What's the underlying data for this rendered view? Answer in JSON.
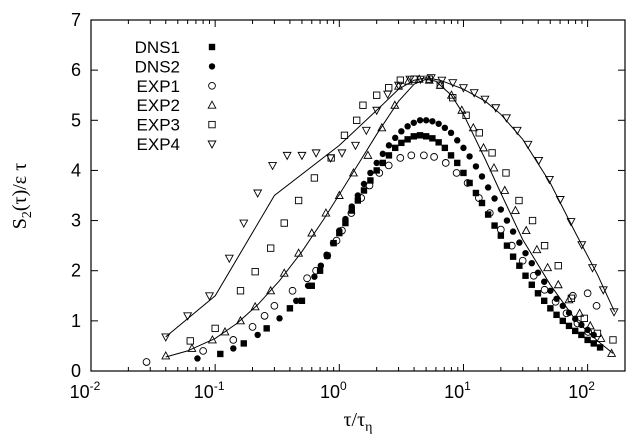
{
  "chart_data": {
    "type": "scatter",
    "xlabel": "τ/τ_η",
    "ylabel": "S_2(τ)/ε τ",
    "xscale": "log",
    "xlim": [
      0.01,
      200
    ],
    "ylim": [
      0,
      7
    ],
    "x_ticks": [
      {
        "base": "10",
        "exp": "-2"
      },
      {
        "base": "10",
        "exp": "-1"
      },
      {
        "base": "10",
        "exp": "0"
      },
      {
        "base": "10",
        "exp": "1"
      },
      {
        "base": "10",
        "exp": "2"
      }
    ],
    "y_ticks": [
      "0",
      "1",
      "2",
      "3",
      "4",
      "5",
      "6",
      "7"
    ],
    "legend_position": "top-left",
    "grid": false,
    "series": [
      {
        "name": "DNS1",
        "marker": "filled-square",
        "points": [
          [
            0.11,
            0.34
          ],
          [
            0.17,
            0.55
          ],
          [
            0.26,
            0.85
          ],
          [
            0.4,
            1.25
          ],
          [
            0.5,
            1.4
          ],
          [
            0.6,
            1.7
          ],
          [
            0.7,
            2.0
          ],
          [
            0.8,
            2.3
          ],
          [
            0.9,
            2.55
          ],
          [
            1.0,
            2.75
          ],
          [
            1.12,
            2.95
          ],
          [
            1.26,
            3.2
          ],
          [
            1.41,
            3.4
          ],
          [
            1.58,
            3.6
          ],
          [
            1.78,
            3.8
          ],
          [
            2.0,
            4.0
          ],
          [
            2.24,
            4.15
          ],
          [
            2.51,
            4.3
          ],
          [
            2.82,
            4.45
          ],
          [
            3.16,
            4.55
          ],
          [
            3.55,
            4.62
          ],
          [
            3.98,
            4.68
          ],
          [
            4.47,
            4.7
          ],
          [
            5.01,
            4.68
          ],
          [
            5.62,
            4.64
          ],
          [
            6.31,
            4.56
          ],
          [
            7.08,
            4.45
          ],
          [
            7.94,
            4.3
          ],
          [
            8.91,
            4.15
          ],
          [
            10.0,
            3.95
          ],
          [
            11.2,
            3.75
          ],
          [
            12.6,
            3.55
          ],
          [
            14.1,
            3.35
          ],
          [
            15.8,
            3.12
          ],
          [
            17.8,
            2.9
          ],
          [
            20.0,
            2.7
          ],
          [
            22.4,
            2.5
          ],
          [
            25.1,
            2.28
          ],
          [
            28.2,
            2.1
          ],
          [
            31.6,
            1.9
          ],
          [
            35.5,
            1.72
          ],
          [
            39.8,
            1.55
          ],
          [
            44.7,
            1.4
          ],
          [
            50.1,
            1.25
          ],
          [
            56.2,
            1.12
          ],
          [
            63.1,
            1.0
          ],
          [
            70.8,
            0.9
          ],
          [
            79.4,
            0.8
          ],
          [
            89.1,
            0.72
          ],
          [
            100.0,
            0.62
          ],
          [
            112.0,
            0.55
          ],
          [
            126.0,
            0.47
          ]
        ]
      },
      {
        "name": "DNS2",
        "marker": "filled-circle",
        "points": [
          [
            0.072,
            0.25
          ],
          [
            0.14,
            0.45
          ],
          [
            0.22,
            0.72
          ],
          [
            0.33,
            1.05
          ],
          [
            0.45,
            1.4
          ],
          [
            0.56,
            1.7
          ],
          [
            0.63,
            1.88
          ],
          [
            0.71,
            2.1
          ],
          [
            0.79,
            2.32
          ],
          [
            0.89,
            2.55
          ],
          [
            1.0,
            2.8
          ],
          [
            1.12,
            3.03
          ],
          [
            1.26,
            3.28
          ],
          [
            1.41,
            3.5
          ],
          [
            1.58,
            3.73
          ],
          [
            1.78,
            3.95
          ],
          [
            2.0,
            4.15
          ],
          [
            2.24,
            4.33
          ],
          [
            2.51,
            4.5
          ],
          [
            2.82,
            4.65
          ],
          [
            3.16,
            4.78
          ],
          [
            3.55,
            4.88
          ],
          [
            3.98,
            4.95
          ],
          [
            4.47,
            5.0
          ],
          [
            5.01,
            5.0
          ],
          [
            5.62,
            4.98
          ],
          [
            6.31,
            4.93
          ],
          [
            7.08,
            4.85
          ],
          [
            7.94,
            4.75
          ],
          [
            8.91,
            4.6
          ],
          [
            10.0,
            4.45
          ],
          [
            11.2,
            4.28
          ],
          [
            12.6,
            4.08
          ],
          [
            14.1,
            3.88
          ],
          [
            15.8,
            3.66
          ],
          [
            17.8,
            3.44
          ],
          [
            20.0,
            3.22
          ],
          [
            22.4,
            3.0
          ],
          [
            25.1,
            2.78
          ],
          [
            28.2,
            2.56
          ],
          [
            31.6,
            2.35
          ],
          [
            35.5,
            2.15
          ],
          [
            39.8,
            1.96
          ],
          [
            44.7,
            1.78
          ],
          [
            50.1,
            1.6
          ],
          [
            56.2,
            1.44
          ],
          [
            63.1,
            1.3
          ],
          [
            70.8,
            1.16
          ],
          [
            79.4,
            1.04
          ],
          [
            89.1,
            0.92
          ],
          [
            100.0,
            0.82
          ],
          [
            112.0,
            0.72
          ]
        ]
      },
      {
        "name": "EXP1",
        "marker": "open-circle",
        "points": [
          [
            0.028,
            0.18
          ],
          [
            0.08,
            0.4
          ],
          [
            0.14,
            0.62
          ],
          [
            0.2,
            0.88
          ],
          [
            0.25,
            1.1
          ],
          [
            0.3,
            1.3
          ],
          [
            0.42,
            1.6
          ],
          [
            0.55,
            1.85
          ],
          [
            0.65,
            2.0
          ],
          [
            0.8,
            2.3
          ],
          [
            0.95,
            2.6
          ],
          [
            1.05,
            2.8
          ],
          [
            1.25,
            3.15
          ],
          [
            1.5,
            3.45
          ],
          [
            1.75,
            3.7
          ],
          [
            2.1,
            3.95
          ],
          [
            2.5,
            4.1
          ],
          [
            3.1,
            4.25
          ],
          [
            3.8,
            4.3
          ],
          [
            4.8,
            4.3
          ],
          [
            5.8,
            4.27
          ],
          [
            7.2,
            4.15
          ],
          [
            8.8,
            3.95
          ],
          [
            10.8,
            3.75
          ],
          [
            13.3,
            3.45
          ],
          [
            16.3,
            3.15
          ],
          [
            20.0,
            2.82
          ],
          [
            24.5,
            2.5
          ],
          [
            30.0,
            2.2
          ],
          [
            36.8,
            1.9
          ],
          [
            45.0,
            1.62
          ],
          [
            55.2,
            1.38
          ],
          [
            67.6,
            1.15
          ],
          [
            82.8,
            0.95
          ],
          [
            101.0,
            0.78
          ],
          [
            76.0,
            1.5
          ],
          [
            100.0,
            1.55
          ],
          [
            118.0,
            1.3
          ]
        ]
      },
      {
        "name": "EXP2",
        "marker": "open-triangle",
        "points": [
          [
            0.04,
            0.3
          ],
          [
            0.065,
            0.45
          ],
          [
            0.095,
            0.62
          ],
          [
            0.12,
            0.78
          ],
          [
            0.16,
            1.0
          ],
          [
            0.21,
            1.28
          ],
          [
            0.28,
            1.6
          ],
          [
            0.36,
            1.95
          ],
          [
            0.47,
            2.35
          ],
          [
            0.6,
            2.75
          ],
          [
            0.78,
            3.15
          ],
          [
            1.0,
            3.5
          ],
          [
            1.3,
            3.95
          ],
          [
            1.7,
            4.3
          ],
          [
            2.2,
            4.85
          ],
          [
            2.8,
            5.3
          ],
          [
            3.0,
            5.68
          ],
          [
            3.6,
            5.78
          ],
          [
            4.4,
            5.82
          ],
          [
            5.3,
            5.8
          ],
          [
            6.5,
            5.7
          ],
          [
            8.0,
            5.5
          ],
          [
            9.7,
            5.2
          ],
          [
            12.0,
            4.85
          ],
          [
            14.5,
            4.45
          ],
          [
            17.6,
            4.05
          ],
          [
            21.5,
            3.6
          ],
          [
            26.2,
            3.2
          ],
          [
            32.0,
            2.8
          ],
          [
            39.0,
            2.42
          ],
          [
            47.6,
            2.06
          ],
          [
            58.0,
            1.72
          ],
          [
            70.7,
            1.42
          ],
          [
            86.2,
            1.15
          ],
          [
            105.0,
            0.9
          ],
          [
            128.0,
            0.65
          ],
          [
            156.0,
            0.35
          ]
        ]
      },
      {
        "name": "EXP3",
        "marker": "open-square",
        "points": [
          [
            0.063,
            0.6
          ],
          [
            0.1,
            0.85
          ],
          [
            0.16,
            1.6
          ],
          [
            0.21,
            1.98
          ],
          [
            0.28,
            2.45
          ],
          [
            0.36,
            2.95
          ],
          [
            0.47,
            3.4
          ],
          [
            0.63,
            3.85
          ],
          [
            0.86,
            4.25
          ],
          [
            1.1,
            4.7
          ],
          [
            1.38,
            5.0
          ],
          [
            1.55,
            5.3
          ],
          [
            2.0,
            5.5
          ],
          [
            2.5,
            5.65
          ],
          [
            3.1,
            5.8
          ],
          [
            4.0,
            5.82
          ],
          [
            5.3,
            5.82
          ],
          [
            6.5,
            5.7
          ],
          [
            8.2,
            5.45
          ],
          [
            10.5,
            5.1
          ],
          [
            13.4,
            4.75
          ],
          [
            17.0,
            4.35
          ],
          [
            22.0,
            3.95
          ],
          [
            28.0,
            3.4
          ],
          [
            36.0,
            3.0
          ],
          [
            45.0,
            2.5
          ],
          [
            58.0,
            2.1
          ],
          [
            74.0,
            1.45
          ],
          [
            94.0,
            1.05
          ],
          [
            120.0,
            0.75
          ],
          [
            160.0,
            0.62
          ]
        ]
      },
      {
        "name": "EXP4",
        "marker": "open-triangle-down",
        "points": [
          [
            0.04,
            0.68
          ],
          [
            0.06,
            1.1
          ],
          [
            0.09,
            1.5
          ],
          [
            0.13,
            2.25
          ],
          [
            0.17,
            2.95
          ],
          [
            0.22,
            3.55
          ],
          [
            0.29,
            4.1
          ],
          [
            0.38,
            4.3
          ],
          [
            0.5,
            4.3
          ],
          [
            0.65,
            4.35
          ],
          [
            0.85,
            4.25
          ],
          [
            1.05,
            4.35
          ],
          [
            1.35,
            4.5
          ],
          [
            1.65,
            4.8
          ],
          [
            2.0,
            5.2
          ],
          [
            2.45,
            5.52
          ],
          [
            3.0,
            5.7
          ],
          [
            3.7,
            5.82
          ],
          [
            4.5,
            5.82
          ],
          [
            5.5,
            5.85
          ],
          [
            6.7,
            5.8
          ],
          [
            8.2,
            5.75
          ],
          [
            10.0,
            5.65
          ],
          [
            12.2,
            5.55
          ],
          [
            14.9,
            5.42
          ],
          [
            18.2,
            5.25
          ],
          [
            22.2,
            5.05
          ],
          [
            27.1,
            4.8
          ],
          [
            33.1,
            4.52
          ],
          [
            40.4,
            4.2
          ],
          [
            49.3,
            3.82
          ],
          [
            60.2,
            3.42
          ],
          [
            73.5,
            2.98
          ],
          [
            89.7,
            2.52
          ],
          [
            109.5,
            2.06
          ],
          [
            133.7,
            1.62
          ],
          [
            163.2,
            1.18
          ]
        ]
      }
    ],
    "fit_curves": [
      {
        "points": [
          [
            0.04,
            0.28
          ],
          [
            0.06,
            0.4
          ],
          [
            0.1,
            0.65
          ],
          [
            0.15,
            0.95
          ],
          [
            0.22,
            1.32
          ],
          [
            0.33,
            1.8
          ],
          [
            0.5,
            2.38
          ],
          [
            0.75,
            3.03
          ],
          [
            1.0,
            3.52
          ],
          [
            1.5,
            4.22
          ],
          [
            2.0,
            4.72
          ],
          [
            3.0,
            5.38
          ],
          [
            4.0,
            5.72
          ],
          [
            5.0,
            5.82
          ],
          [
            6.0,
            5.78
          ],
          [
            8.0,
            5.5
          ],
          [
            10.0,
            5.12
          ],
          [
            15.0,
            4.22
          ],
          [
            20.0,
            3.55
          ],
          [
            30.0,
            2.62
          ],
          [
            50.0,
            1.72
          ],
          [
            80.0,
            1.02
          ],
          [
            120.0,
            0.6
          ],
          [
            160.0,
            0.35
          ]
        ]
      },
      {
        "points": [
          [
            0.04,
            0.68
          ],
          [
            0.1,
            1.5
          ],
          [
            0.3,
            3.5
          ],
          [
            1.0,
            4.5
          ],
          [
            2.0,
            5.2
          ],
          [
            3.0,
            5.62
          ],
          [
            4.0,
            5.8
          ],
          [
            5.0,
            5.85
          ],
          [
            6.5,
            5.8
          ],
          [
            10.0,
            5.62
          ],
          [
            15.0,
            5.38
          ],
          [
            20.0,
            5.12
          ],
          [
            30.0,
            4.62
          ],
          [
            50.0,
            3.75
          ],
          [
            80.0,
            2.75
          ],
          [
            120.0,
            1.92
          ],
          [
            165.0,
            1.18
          ]
        ]
      }
    ]
  }
}
